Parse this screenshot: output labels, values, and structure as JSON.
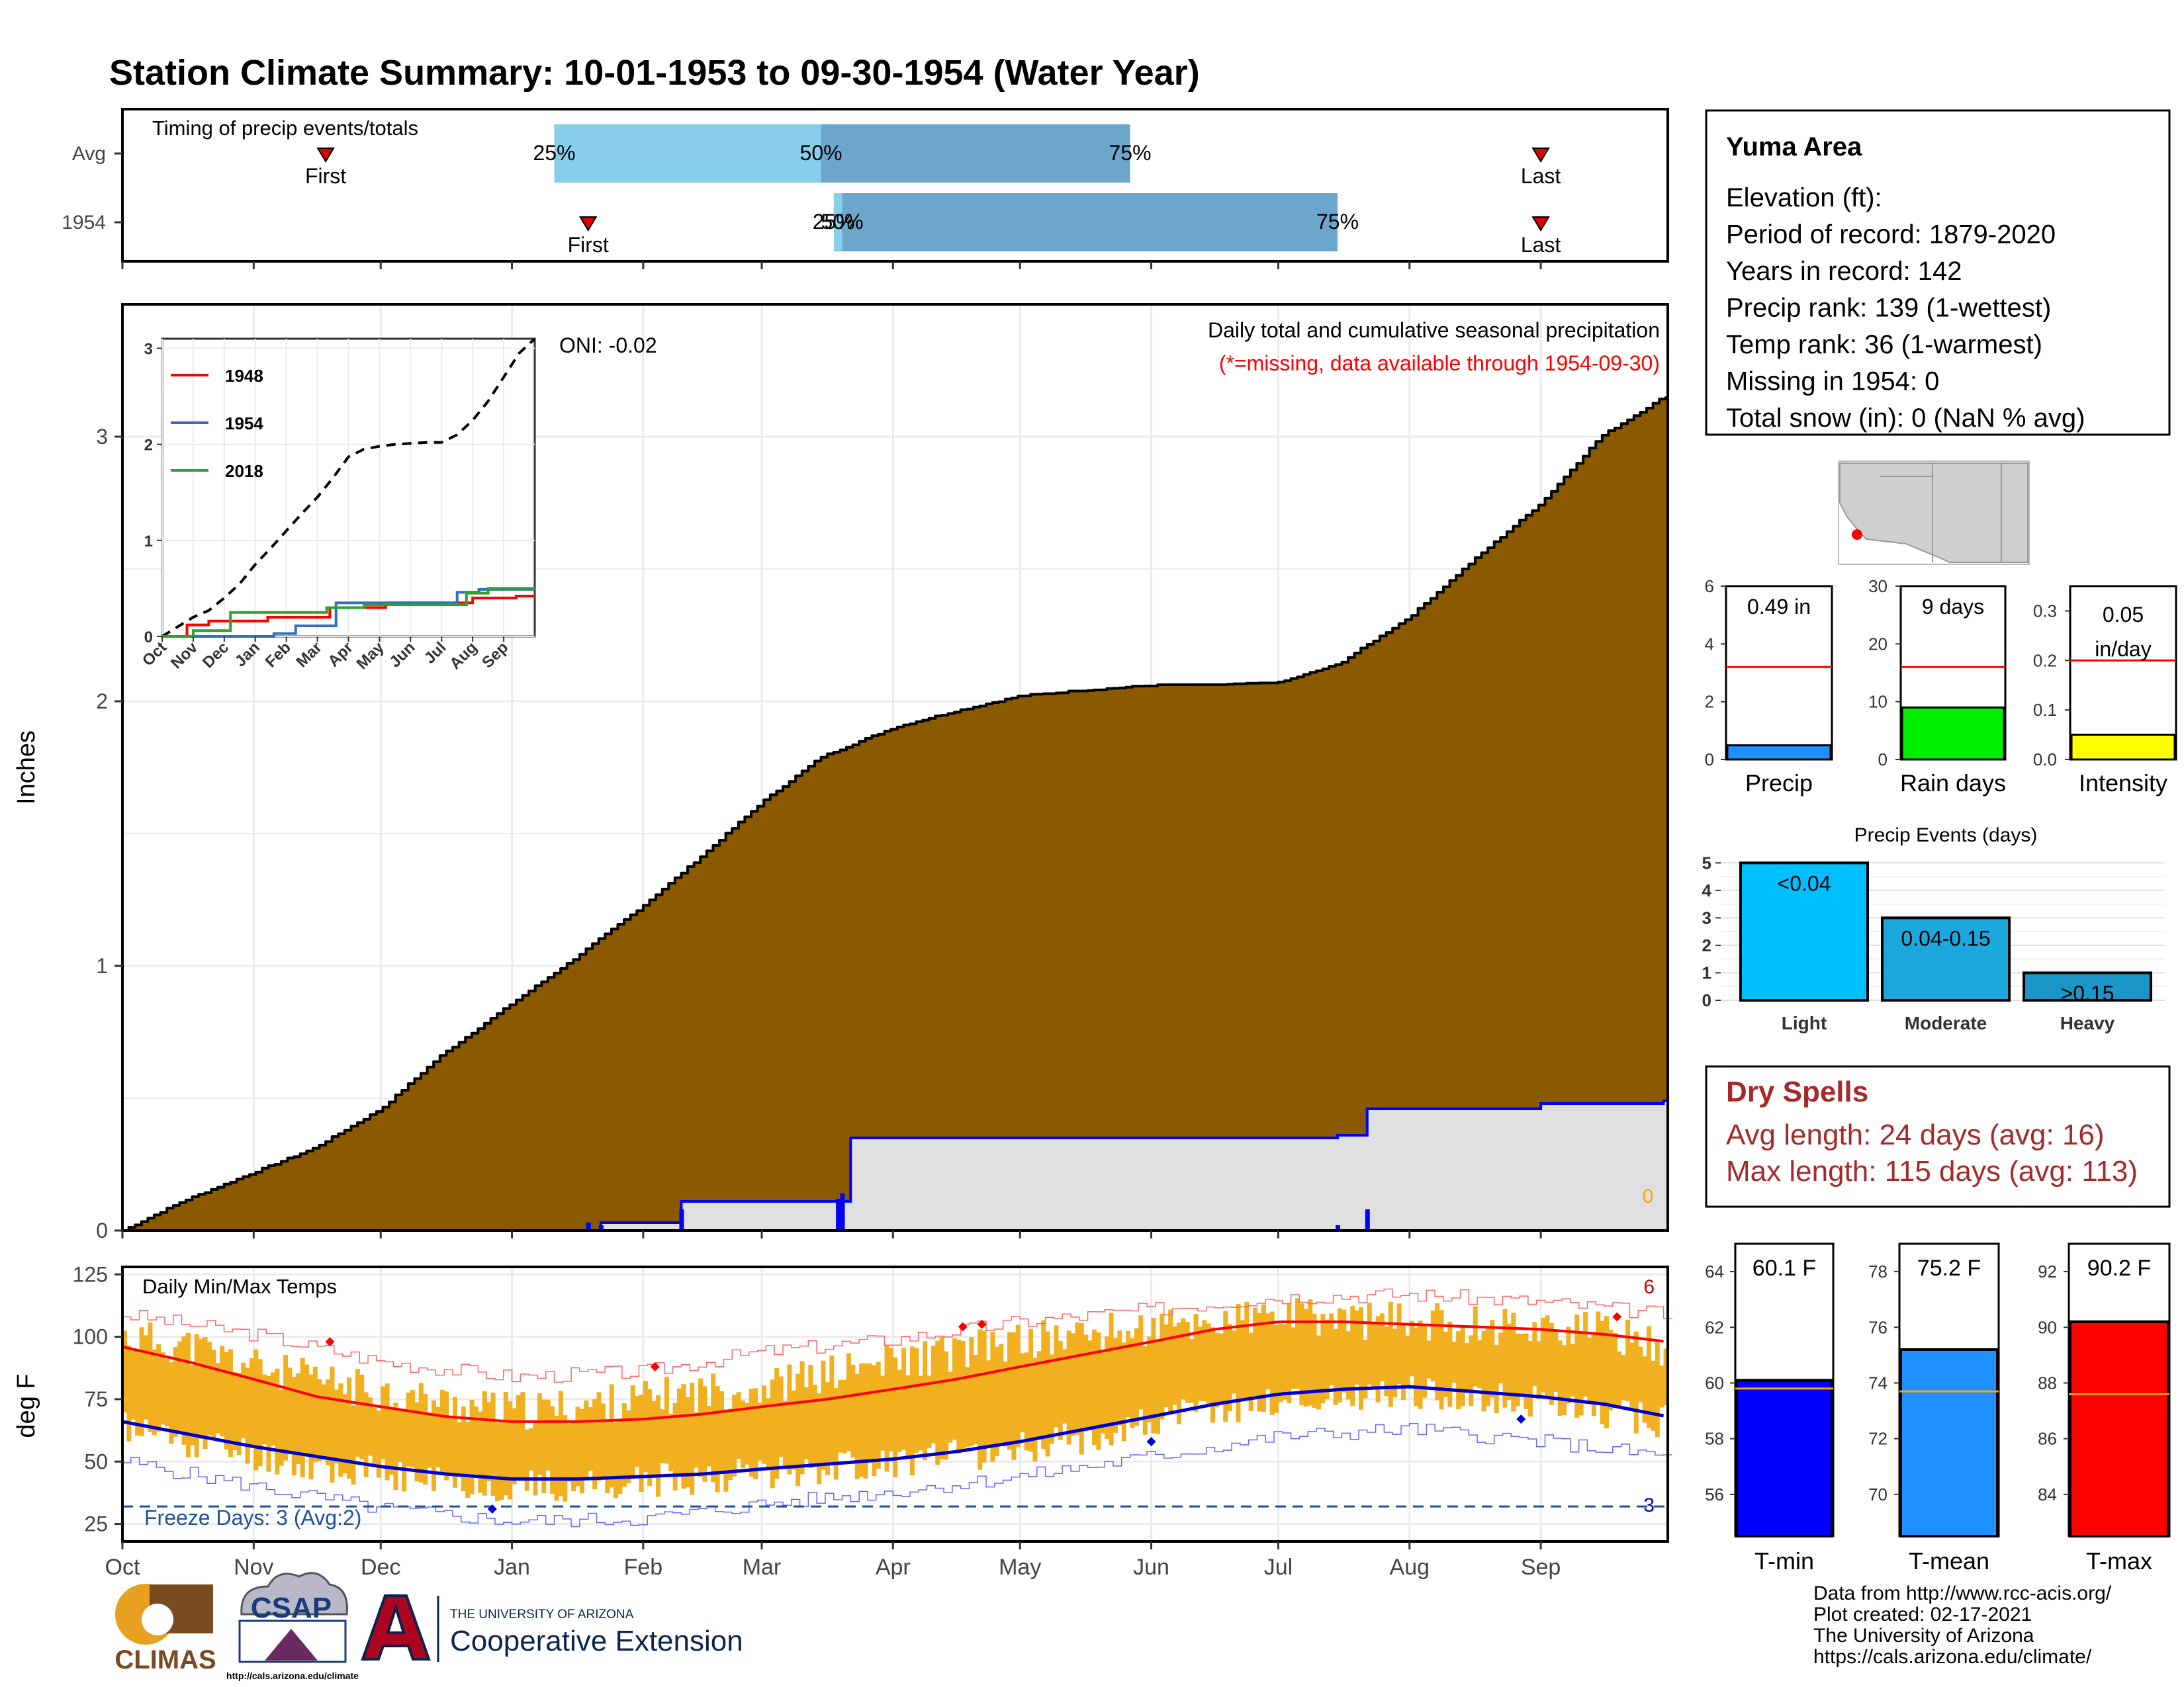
{
  "title": "Station Climate Summary: 10-01-1953 to 09-30-1954 (Water Year)",
  "colors": {
    "title": "#8B2500",
    "cum_fill": "#8B5A00",
    "avg_fill": "#e0e0e0",
    "this_line": "#0000ff",
    "q_light": "#87CEEB",
    "q_dark": "#6CA6CD",
    "temp_band": "#F0B020",
    "tmax_line": "#ff0000",
    "tmin_line": "#0000cc",
    "dryspell": "#A52A2A"
  },
  "timing": {
    "title": "Timing of precip events/totals",
    "rows": [
      {
        "label": "Avg",
        "first_date": "1953-11-18",
        "last_date": "1954-09-01",
        "q25_date": "1954-01-11",
        "q50_date": "1954-03-15",
        "q75_date": "1954-05-27",
        "q25": "25%",
        "q50": "50%",
        "q75": "75%",
        "first": "First",
        "last": "Last"
      },
      {
        "label": "1954",
        "first_date": "1954-01-19",
        "last_date": "1954-09-01",
        "q25_date": "1954-03-18",
        "q50_date": "1954-03-20",
        "q75_date": "1954-07-15",
        "q25": "25%",
        "q50": "50%",
        "q75": "75%",
        "first": "First",
        "last": "Last"
      }
    ]
  },
  "months": [
    "Oct",
    "Nov",
    "Dec",
    "Jan",
    "Feb",
    "Mar",
    "Apr",
    "May",
    "Jun",
    "Jul",
    "Aug",
    "Sep"
  ],
  "chart_data": [
    {
      "type": "area",
      "name": "precip-main",
      "caption": "Daily total and cumulative seasonal precipitation",
      "note": "(*=missing, data available through 1954-09-30)",
      "oni": "ONI: -0.02",
      "corner_label": "0",
      "ylabel": "Inches",
      "ylim": [
        0,
        3.5
      ],
      "yticks": [
        "0",
        "1",
        "2",
        "3"
      ],
      "average_cumulative": {
        "x": [
          "1953-10-01",
          "1953-10-15",
          "1953-11-01",
          "1953-11-15",
          "1953-12-01",
          "1953-12-15",
          "1954-01-01",
          "1954-01-15",
          "1954-02-01",
          "1954-02-15",
          "1954-03-01",
          "1954-03-15",
          "1954-04-01",
          "1954-04-15",
          "1954-05-01",
          "1954-05-15",
          "1954-06-01",
          "1954-06-15",
          "1954-07-01",
          "1954-07-15",
          "1954-08-01",
          "1954-08-15",
          "1954-09-01",
          "1954-09-15",
          "1954-09-30"
        ],
        "y": [
          0,
          0.11,
          0.22,
          0.31,
          0.46,
          0.66,
          0.86,
          1.02,
          1.23,
          1.42,
          1.62,
          1.79,
          1.9,
          1.96,
          2.02,
          2.04,
          2.06,
          2.06,
          2.07,
          2.14,
          2.32,
          2.52,
          2.75,
          3.0,
          3.15
        ]
      },
      "this_year_cumulative": {
        "x": [
          "1953-10-01",
          "1954-01-19",
          "1954-01-22",
          "1954-02-10",
          "1954-03-19",
          "1954-03-22",
          "1954-07-15",
          "1954-07-22",
          "1954-09-01",
          "1954-09-30"
        ],
        "y": [
          0,
          0,
          0.03,
          0.11,
          0.11,
          0.35,
          0.36,
          0.46,
          0.48,
          0.49
        ]
      },
      "this_year_daily": {
        "x": [
          "1954-01-19",
          "1954-01-22",
          "1954-02-10",
          "1954-03-19",
          "1954-03-20",
          "1954-07-15",
          "1954-07-22"
        ],
        "y": [
          0.03,
          0.02,
          0.08,
          0.12,
          0.14,
          0.02,
          0.08
        ]
      }
    },
    {
      "type": "line",
      "name": "inset-cumulative",
      "ylim": [
        0,
        3
      ],
      "yticks": [
        "0",
        "1",
        "2",
        "3"
      ],
      "xticks": [
        "Oct",
        "Nov",
        "Dec",
        "Jan",
        "Feb",
        "Mar",
        "Apr",
        "May",
        "Jun",
        "Jul",
        "Aug",
        "Sep"
      ],
      "average": {
        "x": [
          0,
          0.5,
          1,
          1.5,
          2,
          2.5,
          3,
          3.5,
          4,
          4.5,
          5,
          5.5,
          6,
          6.5,
          7,
          7.5,
          8,
          8.5,
          9,
          9.5,
          10,
          10.5,
          11,
          11.5,
          12
        ],
        "y": [
          0,
          0.1,
          0.2,
          0.27,
          0.4,
          0.55,
          0.75,
          0.92,
          1.1,
          1.28,
          1.45,
          1.65,
          1.87,
          1.95,
          1.98,
          2.0,
          2.01,
          2.02,
          2.02,
          2.1,
          2.25,
          2.45,
          2.7,
          2.95,
          3.1
        ]
      },
      "series": [
        {
          "name": "1948",
          "color": "#ff0000",
          "x": [
            0,
            0.8,
            0.8,
            1.5,
            1.5,
            3.4,
            3.4,
            5.4,
            5.4,
            7.2,
            7.2,
            10.0,
            10.0,
            11.4,
            11.4,
            12.0
          ],
          "y": [
            0,
            0,
            0.12,
            0.12,
            0.16,
            0.16,
            0.2,
            0.2,
            0.3,
            0.3,
            0.35,
            0.35,
            0.4,
            0.4,
            0.42,
            0.42
          ]
        },
        {
          "name": "1954",
          "color": "#3070c0",
          "x": [
            0,
            3.6,
            3.6,
            4.3,
            4.3,
            5.6,
            5.6,
            9.5,
            9.5,
            10.2,
            10.2,
            12.0
          ],
          "y": [
            0,
            0,
            0.03,
            0.03,
            0.11,
            0.11,
            0.35,
            0.35,
            0.46,
            0.46,
            0.49,
            0.49
          ]
        },
        {
          "name": "2018",
          "color": "#30a030",
          "x": [
            0,
            1.0,
            1.0,
            2.2,
            2.2,
            5.3,
            5.3,
            6.5,
            6.5,
            9.8,
            9.8,
            10.5,
            10.5,
            12.0
          ],
          "y": [
            0,
            0,
            0.06,
            0.06,
            0.25,
            0.25,
            0.3,
            0.3,
            0.33,
            0.33,
            0.45,
            0.45,
            0.5,
            0.5
          ]
        }
      ]
    },
    {
      "type": "bar",
      "name": "season-totals",
      "panels": [
        {
          "label": "Precip",
          "value_text": "0.49 in",
          "value": 0.49,
          "avg": 3.2,
          "ylim": [
            0,
            6
          ],
          "yticks": [
            "0",
            "2",
            "4",
            "6"
          ],
          "color": "#1E90FF"
        },
        {
          "label": "Rain days",
          "value_text": "9 days",
          "value": 9,
          "avg": 16,
          "ylim": [
            0,
            30
          ],
          "yticks": [
            "0",
            "10",
            "20",
            "30"
          ],
          "color": "#00EE00"
        },
        {
          "label": "Intensity",
          "value_text": "0.05",
          "value_text_2": "in/day",
          "value": 0.05,
          "avg": 0.2,
          "ylim": [
            0,
            0.35
          ],
          "yticks": [
            "0.0",
            "0.1",
            "0.2",
            "0.3"
          ],
          "color": "#FFFF00"
        }
      ]
    },
    {
      "type": "bar",
      "name": "precip-events",
      "title": "Precip Events (days)",
      "categories": [
        "Light",
        "Moderate",
        "Heavy"
      ],
      "bar_labels": [
        "<0.04",
        "0.04-0.15",
        ">0.15"
      ],
      "values": [
        5,
        3,
        1
      ],
      "ylim": [
        0,
        5.2
      ],
      "yticks": [
        "0",
        "1",
        "2",
        "3",
        "4",
        "5"
      ]
    },
    {
      "type": "line",
      "name": "daily-temps",
      "title": "Daily Min/Max Temps",
      "ylabel": "deg F",
      "ylim": [
        18,
        128
      ],
      "yticks": [
        "25",
        "50",
        "75",
        "100",
        "125"
      ],
      "freeze_text": "Freeze Days: 3 (Avg:2)",
      "freeze_count": "3",
      "hot_count": "6",
      "freeze_threshold": 32,
      "avg_tmax": {
        "x": [
          0,
          0.5,
          1,
          1.5,
          2,
          2.5,
          3,
          3.5,
          4,
          4.5,
          5,
          5.5,
          6,
          6.5,
          7,
          7.5,
          8,
          8.5,
          9,
          9.5,
          10,
          10.5,
          11,
          11.5,
          12
        ],
        "y": [
          96,
          90,
          83,
          76,
          72,
          68,
          66,
          66,
          67,
          69,
          72,
          75,
          79,
          83,
          88,
          93,
          98,
          103,
          106,
          106,
          105,
          104,
          103,
          101,
          98
        ]
      },
      "avg_tmin": {
        "x": [
          0,
          0.5,
          1,
          1.5,
          2,
          2.5,
          3,
          3.5,
          4,
          4.5,
          5,
          5.5,
          6,
          6.5,
          7,
          7.5,
          8,
          8.5,
          9,
          9.5,
          10,
          10.5,
          11,
          11.5,
          12
        ],
        "y": [
          66,
          61,
          56,
          52,
          48,
          45,
          43,
          43,
          44,
          45,
          47,
          49,
          51,
          54,
          58,
          63,
          68,
          73,
          77,
          79,
          80,
          78,
          76,
          73,
          68
        ]
      },
      "record_high": {
        "x": [
          0,
          1,
          2,
          3,
          4,
          5,
          6,
          7,
          8,
          9,
          10,
          11,
          12
        ],
        "y": [
          109,
          101,
          90,
          84,
          86,
          94,
          99,
          106,
          111,
          116,
          117,
          114,
          109
        ]
      },
      "record_low": {
        "x": [
          0,
          1,
          2,
          3,
          4,
          5,
          6,
          7,
          8,
          9,
          10,
          11,
          12
        ],
        "y": [
          50,
          40,
          31,
          26,
          27,
          33,
          38,
          44,
          52,
          60,
          63,
          58,
          52
        ]
      },
      "daily_high": {
        "x": [
          0,
          0.5,
          1,
          1.5,
          2,
          2.5,
          3,
          3.5,
          4,
          4.5,
          5,
          5.5,
          6,
          6.5,
          7,
          7.5,
          8,
          8.5,
          9,
          9.5,
          10,
          10.5,
          11,
          11.5,
          12
        ],
        "y": [
          100,
          96,
          88,
          82,
          78,
          73,
          70,
          72,
          75,
          78,
          80,
          85,
          90,
          94,
          98,
          101,
          103,
          106,
          108,
          107,
          106,
          105,
          104,
          102,
          95
        ]
      },
      "daily_low": {
        "x": [
          0,
          0.5,
          1,
          1.5,
          2,
          2.5,
          3,
          3.5,
          4,
          4.5,
          5,
          5.5,
          6,
          6.5,
          7,
          7.5,
          8,
          8.5,
          9,
          9.5,
          10,
          10.5,
          11,
          11.5,
          12
        ],
        "y": [
          64,
          58,
          53,
          48,
          45,
          42,
          40,
          40,
          42,
          44,
          46,
          48,
          50,
          52,
          56,
          60,
          66,
          71,
          74,
          76,
          78,
          76,
          73,
          70,
          66
        ]
      }
    },
    {
      "type": "bar",
      "name": "temp-summary",
      "panels": [
        {
          "label": "T-min",
          "value_text": "60.1 F",
          "value": 60.1,
          "avg": 59.8,
          "ylim": [
            54.5,
            65
          ],
          "yticks": [
            "56",
            "58",
            "60",
            "62",
            "64"
          ],
          "color": "#0000ff"
        },
        {
          "label": "T-mean",
          "value_text": "75.2 F",
          "value": 75.2,
          "avg": 73.7,
          "ylim": [
            68.5,
            79
          ],
          "yticks": [
            "70",
            "72",
            "74",
            "76",
            "78"
          ],
          "color": "#1E90FF"
        },
        {
          "label": "T-max",
          "value_text": "90.2 F",
          "value": 90.2,
          "avg": 87.6,
          "ylim": [
            82.5,
            93
          ],
          "yticks": [
            "84",
            "86",
            "88",
            "90",
            "92"
          ],
          "color": "#ff0000"
        }
      ]
    }
  ],
  "info": {
    "name": "Yuma Area",
    "lines": [
      "Elevation (ft):",
      "Period of record: 1879-2020",
      "Years in record: 142",
      "Precip rank: 139 (1-wettest)",
      "Temp rank: 36 (1-warmest)",
      "Missing in 1954: 0",
      "Total snow (in): 0 (NaN % avg)"
    ]
  },
  "dryspells": {
    "title": "Dry Spells",
    "avg": "Avg length: 24 days (avg: 16)",
    "max": "Max length: 115 days (avg: 113)"
  },
  "footer": {
    "lines": [
      "Data from http://www.rcc-acis.org/",
      "Plot created: 02-17-2021",
      "The University of Arizona",
      "https://cals.arizona.edu/climate/"
    ],
    "climas": "CLIMAS",
    "csap": "CSAP",
    "csap_url": "http://cals.arizona.edu/climate",
    "ua_small": "THE UNIVERSITY OF ARIZONA",
    "ua_big": "Cooperative Extension"
  }
}
